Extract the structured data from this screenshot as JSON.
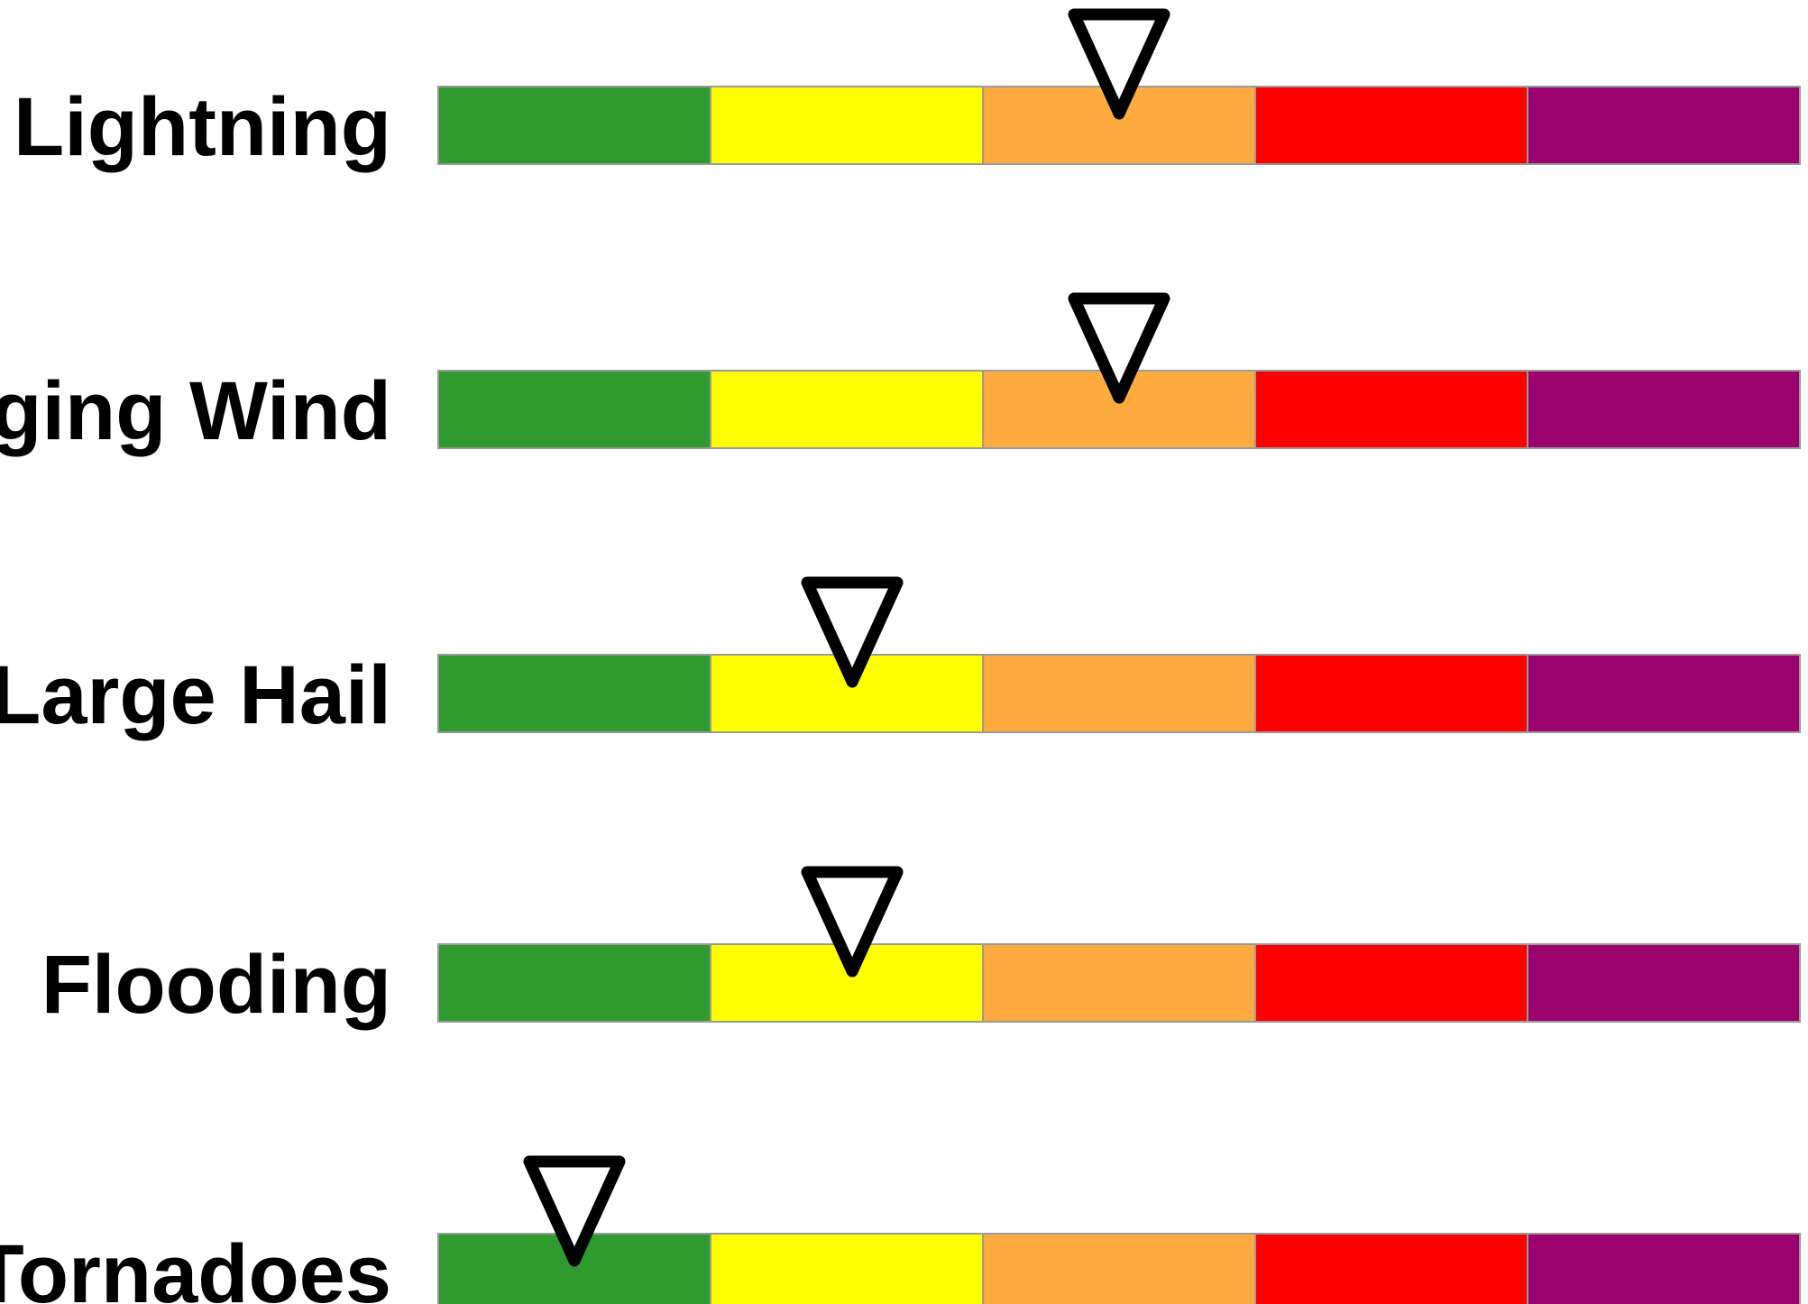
{
  "chart_data": {
    "type": "bar",
    "levels": [
      "1",
      "2",
      "3",
      "4",
      "5"
    ],
    "level_colors": [
      "#2f9b2f",
      "#ffff00",
      "#ffab40",
      "#ff0000",
      "#9c006c"
    ],
    "scale": [
      0,
      5
    ],
    "rows": [
      {
        "label": "Lightning",
        "value": 2.5
      },
      {
        "label": "Damaging Wind",
        "value": 2.5
      },
      {
        "label": "Large Hail",
        "value": 1.52
      },
      {
        "label": "Flooding",
        "value": 1.52
      },
      {
        "label": "Tornadoes",
        "value": 0.5
      }
    ],
    "marker": "inverted-triangle-icon",
    "grid": false
  }
}
